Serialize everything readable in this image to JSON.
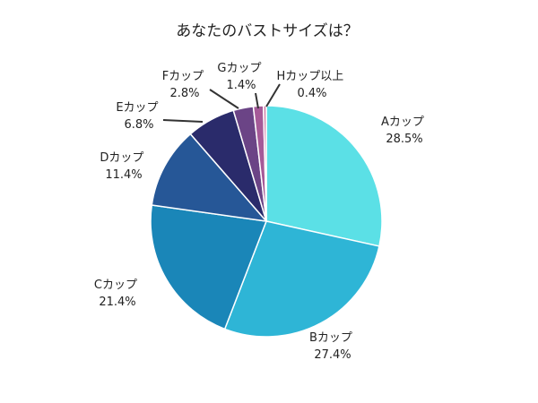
{
  "chart_data": {
    "type": "pie",
    "title": "あなたのバストサイズは？",
    "slices": [
      {
        "label": "Aカップ",
        "value": 28.5,
        "value_label": "28.5%",
        "color": "#5BE0E6"
      },
      {
        "label": "Bカップ",
        "value": 27.4,
        "value_label": "27.4%",
        "color": "#2EB5D6"
      },
      {
        "label": "Cカップ",
        "value": 21.4,
        "value_label": "21.4%",
        "color": "#1A86B8"
      },
      {
        "label": "Dカップ",
        "value": 11.4,
        "value_label": "11.4%",
        "color": "#265797"
      },
      {
        "label": "Eカップ",
        "value": 6.8,
        "value_label": "6.8%",
        "color": "#2A2B6B"
      },
      {
        "label": "Fカップ",
        "value": 2.8,
        "value_label": "2.8%",
        "color": "#6B4486"
      },
      {
        "label": "Gカップ",
        "value": 1.4,
        "value_label": "1.4%",
        "color": "#A55A98"
      },
      {
        "label": "Hカップ以上",
        "value": 0.4,
        "value_label": "0.4%",
        "color": "#D07FA8"
      }
    ],
    "start": "12 o'clock",
    "direction": "clockwise",
    "legend": "none"
  }
}
